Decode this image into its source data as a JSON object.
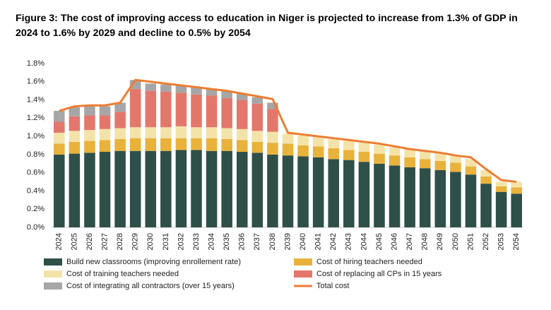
{
  "chart_data": {
    "type": "bar",
    "title": "Figure 3: The cost of improving access to education in Niger is projected to increase from 1.3% of GDP in 2024 to 1.6% by 2029 and decline to 0.5% by 2054",
    "categories": [
      "2024",
      "2025",
      "2026",
      "2027",
      "2028",
      "2029",
      "2030",
      "2031",
      "2032",
      "2033",
      "2034",
      "2035",
      "2036",
      "2037",
      "2038",
      "2039",
      "2040",
      "2041",
      "2042",
      "2043",
      "2044",
      "2045",
      "2046",
      "2047",
      "2048",
      "2049",
      "2050",
      "2051",
      "2052",
      "2053",
      "2054"
    ],
    "ylim": [
      0,
      1.8
    ],
    "yticks": [
      {
        "value": 0,
        "label": "0.0%"
      },
      {
        "value": 0.2,
        "label": "0.2%"
      },
      {
        "value": 0.4,
        "label": "0.4%"
      },
      {
        "value": 0.6,
        "label": "0.6%"
      },
      {
        "value": 0.8,
        "label": "0.8%"
      },
      {
        "value": 1.0,
        "label": "1.0%"
      },
      {
        "value": 1.2,
        "label": "1.2%"
      },
      {
        "value": 1.4,
        "label": "1.4%"
      },
      {
        "value": 1.6,
        "label": "1.6%"
      },
      {
        "value": 1.8,
        "label": "1.8%"
      }
    ],
    "stacked": true,
    "series": [
      {
        "name": "Build new classrooms (improving enrollement rate)",
        "type": "bar",
        "color": "#2e5049",
        "values": [
          0.8,
          0.81,
          0.82,
          0.83,
          0.84,
          0.84,
          0.84,
          0.84,
          0.85,
          0.85,
          0.84,
          0.84,
          0.83,
          0.82,
          0.8,
          0.79,
          0.78,
          0.77,
          0.75,
          0.74,
          0.72,
          0.7,
          0.68,
          0.66,
          0.65,
          0.63,
          0.61,
          0.58,
          0.48,
          0.39,
          0.37
        ]
      },
      {
        "name": "Cost of hiring teachers needed",
        "type": "bar",
        "color": "#e9b23a",
        "values": [
          0.12,
          0.13,
          0.13,
          0.13,
          0.13,
          0.14,
          0.14,
          0.14,
          0.13,
          0.13,
          0.14,
          0.13,
          0.13,
          0.12,
          0.13,
          0.13,
          0.12,
          0.12,
          0.12,
          0.11,
          0.11,
          0.11,
          0.11,
          0.11,
          0.1,
          0.1,
          0.1,
          0.09,
          0.08,
          0.06,
          0.07
        ]
      },
      {
        "name": "Cost of training teachers needed",
        "type": "bar",
        "color": "#f4e3a8",
        "values": [
          0.12,
          0.12,
          0.12,
          0.12,
          0.12,
          0.12,
          0.12,
          0.12,
          0.13,
          0.12,
          0.12,
          0.12,
          0.12,
          0.12,
          0.12,
          0.11,
          0.11,
          0.11,
          0.1,
          0.1,
          0.1,
          0.1,
          0.09,
          0.09,
          0.09,
          0.09,
          0.08,
          0.08,
          0.07,
          0.05,
          0.06
        ]
      },
      {
        "name": "Cost of replacing all CPs in 15 years",
        "type": "bar",
        "color": "#e4776b",
        "values": [
          0.12,
          0.16,
          0.16,
          0.15,
          0.18,
          0.42,
          0.4,
          0.39,
          0.37,
          0.36,
          0.35,
          0.33,
          0.32,
          0.3,
          0.25,
          0,
          0,
          0,
          0,
          0,
          0,
          0,
          0,
          0,
          0,
          0,
          0,
          0,
          0,
          0,
          0
        ]
      },
      {
        "name": "Cost of integrating all contractors (over 15 years)",
        "type": "bar",
        "color": "#a6a6a6",
        "values": [
          0.12,
          0.1,
          0.1,
          0.1,
          0.1,
          0.1,
          0.08,
          0.08,
          0.08,
          0.08,
          0.07,
          0.08,
          0.07,
          0.07,
          0.07,
          0,
          0,
          0,
          0,
          0,
          0,
          0,
          0,
          0,
          0,
          0,
          0,
          0,
          0,
          0,
          0
        ]
      },
      {
        "name": "Total cost",
        "type": "line",
        "color": "#ed7d31",
        "values": [
          1.28,
          1.33,
          1.34,
          1.34,
          1.37,
          1.62,
          1.6,
          1.58,
          1.56,
          1.54,
          1.52,
          1.5,
          1.47,
          1.44,
          1.41,
          1.04,
          1.02,
          1.0,
          0.98,
          0.96,
          0.94,
          0.92,
          0.89,
          0.86,
          0.84,
          0.82,
          0.79,
          0.77,
          0.64,
          0.52,
          0.5
        ]
      }
    ]
  }
}
